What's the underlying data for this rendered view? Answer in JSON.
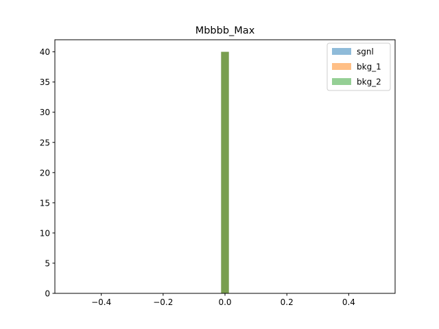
{
  "chart_data": {
    "type": "bar",
    "title": "Mbbbb_Max",
    "xlabel": "",
    "ylabel": "",
    "xlim": [
      -0.55,
      0.55
    ],
    "ylim": [
      0,
      42
    ],
    "x_ticks": [
      -0.4,
      -0.2,
      0.0,
      0.2,
      0.4
    ],
    "x_tick_labels": [
      "−0.4",
      "−0.2",
      "0.0",
      "0.2",
      "0.4"
    ],
    "y_ticks": [
      0,
      5,
      10,
      15,
      20,
      25,
      30,
      35,
      40
    ],
    "y_tick_labels": [
      "0",
      "5",
      "10",
      "15",
      "20",
      "25",
      "30",
      "35",
      "40"
    ],
    "grid": false,
    "legend_position": "top-right",
    "series": [
      {
        "name": "sgnl",
        "color": "#1f77b4",
        "opacity": 0.5,
        "bins": [
          [
            -0.0125,
            0.0125
          ]
        ],
        "values": [
          40
        ]
      },
      {
        "name": "bkg_1",
        "color": "#ff7f0e",
        "opacity": 0.5,
        "bins": [
          [
            -0.0125,
            0.0125
          ]
        ],
        "values": [
          40
        ]
      },
      {
        "name": "bkg_2",
        "color": "#2ca02c",
        "opacity": 0.5,
        "bins": [
          [
            -0.0125,
            0.0125
          ]
        ],
        "values": [
          40
        ]
      }
    ]
  }
}
